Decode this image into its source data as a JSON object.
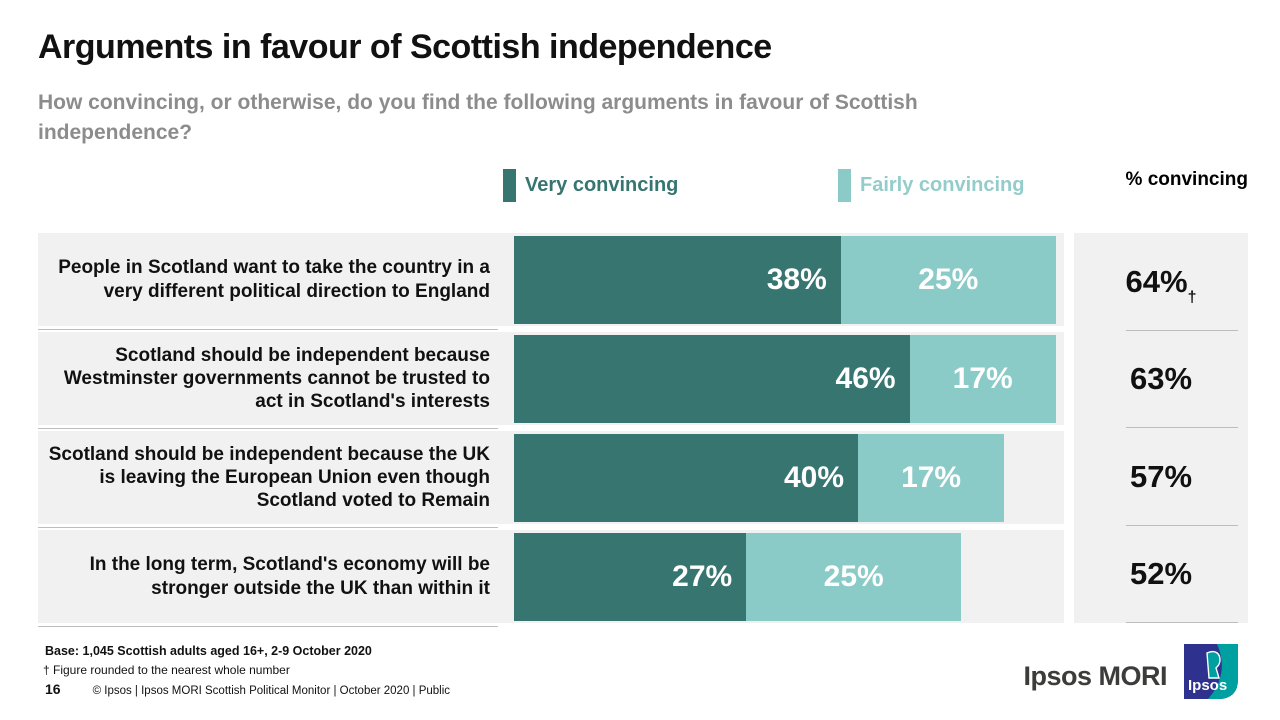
{
  "header": {
    "title": "Arguments in favour of Scottish independence",
    "subtitle": "How convincing, or otherwise, do you find the following arguments in favour of Scottish independence?"
  },
  "legend": {
    "very_label": "Very convincing",
    "fairly_label": "Fairly convincing",
    "total_label": "% convincing"
  },
  "colors": {
    "very": "#377571",
    "fairly": "#8BCBC7",
    "fairly_text": "#93CDCB",
    "row_bg": "#F0F1F0",
    "logo_blue": "#2F318E",
    "logo_teal": "#00A0A0"
  },
  "chart_data": {
    "type": "bar",
    "orientation": "horizontal",
    "stacked": true,
    "title": "Arguments in favour of Scottish independence",
    "xlabel": "",
    "ylabel": "",
    "xlim": [
      0,
      70
    ],
    "grid": false,
    "legend_position": "top",
    "categories": [
      "People in Scotland want to take the country in a very different political direction to England",
      "Scotland should be independent because Westminster governments cannot be trusted to act in Scotland's interests",
      "Scotland should be independent because the UK is leaving the European Union even though Scotland voted to Remain",
      "In the long term, Scotland's economy will be stronger outside the UK than within it"
    ],
    "series": [
      {
        "name": "Very convincing",
        "values": [
          38,
          46,
          40,
          27
        ]
      },
      {
        "name": "Fairly convincing",
        "values": [
          25,
          17,
          17,
          25
        ]
      }
    ],
    "totals": [
      {
        "value": 64,
        "note": "†"
      },
      {
        "value": 63,
        "note": ""
      },
      {
        "value": 57,
        "note": ""
      },
      {
        "value": 52,
        "note": ""
      }
    ],
    "totals_header": "% convincing"
  },
  "footer": {
    "base": "Base: 1,045 Scottish adults aged 16+, 2-9 October 2020",
    "note": "† Figure rounded to the nearest whole number",
    "page_number": "16",
    "credit": "© Ipsos | Ipsos MORI  Scottish Political Monitor | October 2020 | Public",
    "brand": "Ipsos MORI",
    "logo_text": "Ipsos"
  }
}
